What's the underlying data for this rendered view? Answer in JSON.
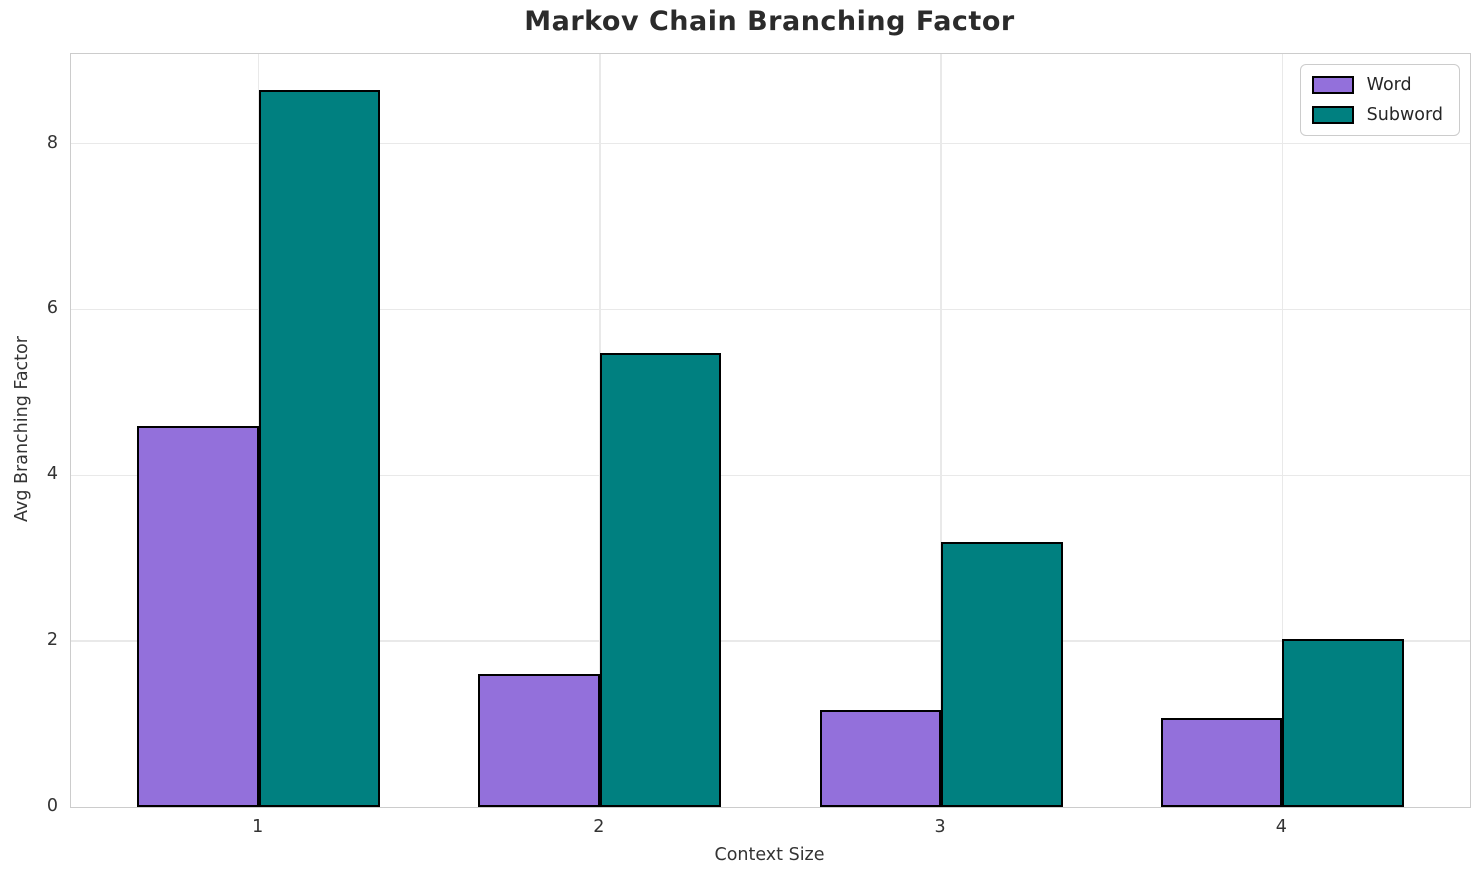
{
  "chart_data": {
    "type": "bar",
    "title": "Markov Chain Branching Factor",
    "xlabel": "Context Size",
    "ylabel": "Avg Branching Factor",
    "categories": [
      "1",
      "2",
      "3",
      "4"
    ],
    "series": [
      {
        "name": "Word",
        "color": "#9370DB",
        "values": [
          4.6,
          1.6,
          1.17,
          1.07
        ]
      },
      {
        "name": "Subword",
        "color": "#008080",
        "values": [
          8.65,
          5.48,
          3.2,
          2.03
        ]
      }
    ],
    "yticks": [
      0,
      2,
      4,
      6,
      8
    ],
    "ylim": [
      0,
      9.08
    ],
    "grid": true,
    "legend_position": "upper right",
    "bar_edge_color": "#000000",
    "grid_color": "#e9e9e9",
    "spine_color": "#cccccc",
    "text_color": "#262626",
    "background_color": "#ffffff"
  }
}
